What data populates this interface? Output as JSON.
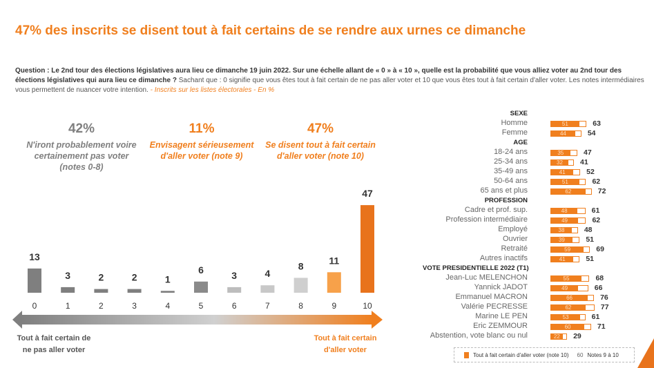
{
  "title": "47% des inscrits se disent tout à fait certains de se rendre aux urnes ce dimanche",
  "question": {
    "label": "Question : Le 2nd tour des élections législatives aura lieu ce dimanche 19 juin 2022. Sur une échelle allant de « 0 » à « 10 », quelle est la probabilité que vous alliez voter au 2nd tour des élections législatives qui aura lieu ce dimanche ?",
    "text": " Sachant que : 0 signifie que vous êtes tout à fait certain de ne pas aller voter et 10 que vous êtes tout à fait certain d'aller voter. Les notes intermédiaires vous permettent de nuancer votre intention.",
    "base": " - Inscrits sur les listes électorales - En %"
  },
  "groups": [
    {
      "pct": "42%",
      "desc": "N'iront probablement voire certainement pas voter (notes 0-8)",
      "color": "#7f7f7f"
    },
    {
      "pct": "11%",
      "desc": "Envisagent sérieusement d'aller voter (note 9)",
      "color": "#f07f1e"
    },
    {
      "pct": "47%",
      "desc": "Se disent tout à fait certain d'aller voter (note 10)",
      "color": "#f07f1e"
    }
  ],
  "axis": {
    "left_label": "Tout à fait certain de ne pas aller voter",
    "right_label": "Tout à fait certain d'aller voter"
  },
  "chart_data": [
    {
      "type": "bar",
      "categories": [
        "0",
        "1",
        "2",
        "3",
        "4",
        "5",
        "6",
        "7",
        "8",
        "9",
        "10"
      ],
      "values": [
        13,
        3,
        2,
        2,
        1,
        6,
        3,
        4,
        8,
        11,
        47
      ],
      "colors": [
        "#7f7f7f",
        "#7f7f7f",
        "#7f7f7f",
        "#7f7f7f",
        "#7f7f7f",
        "#8a8a8a",
        "#bdbdbd",
        "#c8c8c8",
        "#cfcfcf",
        "#f7a14a",
        "#e8731c"
      ],
      "ylim": [
        0,
        50
      ]
    },
    {
      "type": "bar",
      "orientation": "horizontal",
      "legend": {
        "series1": "Tout à fait certain d'aller voter (note 10)",
        "series2_value": "60",
        "series2": "Notes  9 à 10"
      },
      "sections": [
        {
          "title": "SEXE",
          "rows": [
            [
              "Homme",
              51,
              63
            ],
            [
              "Femme",
              44,
              54
            ]
          ]
        },
        {
          "title": "AGE",
          "rows": [
            [
              "18-24 ans",
              35,
              47
            ],
            [
              "25-34 ans",
              32,
              41
            ],
            [
              "35-49 ans",
              41,
              52
            ],
            [
              "50-64 ans",
              51,
              62
            ],
            [
              "65 ans et plus",
              62,
              72
            ]
          ]
        },
        {
          "title": "PROFESSION",
          "rows": [
            [
              "Cadre et prof. sup.",
              48,
              61
            ],
            [
              "Profession intermédiaire",
              49,
              62
            ],
            [
              "Employé",
              38,
              48
            ],
            [
              "Ouvrier",
              39,
              51
            ],
            [
              "Retraité",
              59,
              69
            ],
            [
              "Autres inactifs",
              41,
              51
            ]
          ]
        },
        {
          "title": "VOTE PRESIDENTIELLE 2022 (T1)",
          "rows": [
            [
              "Jean-Luc MELENCHON",
              55,
              68
            ],
            [
              "Yannick JADOT",
              49,
              66
            ],
            [
              "Emmanuel MACRON",
              66,
              76
            ],
            [
              "Valérie PECRESSE",
              62,
              77
            ],
            [
              "Marine LE PEN",
              53,
              61
            ],
            [
              "Eric ZEMMOUR",
              60,
              71
            ],
            [
              "Abstention, vote blanc ou nul",
              22,
              29
            ]
          ]
        }
      ]
    }
  ]
}
